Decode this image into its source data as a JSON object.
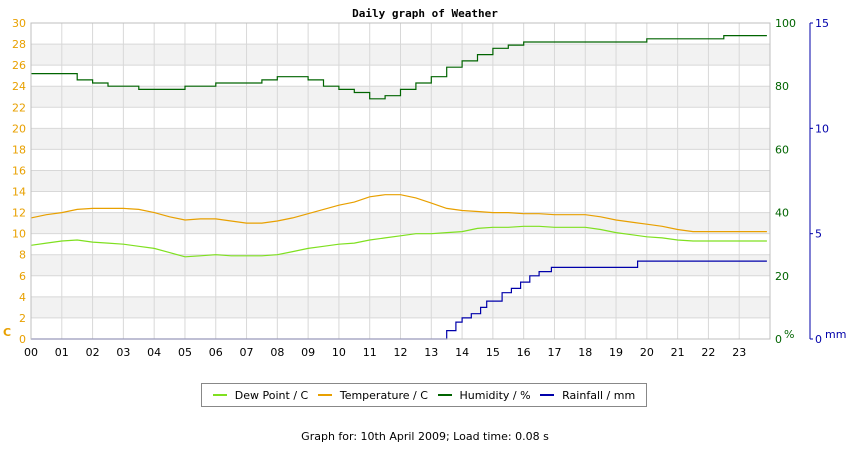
{
  "chart_data": {
    "type": "line",
    "title": "Daily graph of Weather",
    "x_ticks": [
      "00",
      "01",
      "02",
      "03",
      "04",
      "05",
      "06",
      "07",
      "08",
      "09",
      "10",
      "11",
      "12",
      "13",
      "14",
      "15",
      "16",
      "17",
      "18",
      "19",
      "20",
      "21",
      "22",
      "23"
    ],
    "xlim": [
      0,
      24
    ],
    "grid": true,
    "legend_position": "bottom",
    "axes": {
      "left": {
        "label": "C",
        "lim": [
          0,
          30
        ],
        "ticks": [
          0,
          2,
          4,
          6,
          8,
          10,
          12,
          14,
          16,
          18,
          20,
          22,
          24,
          26,
          28,
          30
        ],
        "color": "#e8a000"
      },
      "right_inner": {
        "label": "%",
        "lim": [
          0,
          100
        ],
        "ticks": [
          0,
          20,
          40,
          60,
          80,
          100
        ],
        "color": "#006400"
      },
      "right_outer": {
        "label": "mm",
        "lim": [
          0,
          15
        ],
        "ticks": [
          0,
          5,
          10,
          15
        ],
        "color": "#0000aa"
      }
    },
    "series": [
      {
        "name": "Dew Point / C",
        "color": "#7fe020",
        "axis": "left",
        "x": [
          0,
          0.5,
          1,
          1.5,
          2,
          2.5,
          3,
          3.5,
          4,
          4.5,
          5,
          5.5,
          6,
          6.5,
          7,
          7.5,
          8,
          8.5,
          9,
          9.5,
          10,
          10.5,
          11,
          11.5,
          12,
          12.5,
          13,
          13.5,
          14,
          14.5,
          15,
          15.5,
          16,
          16.5,
          17,
          17.5,
          18,
          18.5,
          19,
          19.5,
          20,
          20.5,
          21,
          21.5,
          22,
          22.5,
          23,
          23.9
        ],
        "y": [
          8.9,
          9.1,
          9.3,
          9.4,
          9.2,
          9.1,
          9.0,
          8.8,
          8.6,
          8.2,
          7.8,
          7.9,
          8.0,
          7.9,
          7.9,
          7.9,
          8.0,
          8.3,
          8.6,
          8.8,
          9.0,
          9.1,
          9.4,
          9.6,
          9.8,
          10.0,
          10.0,
          10.1,
          10.2,
          10.5,
          10.6,
          10.6,
          10.7,
          10.7,
          10.6,
          10.6,
          10.6,
          10.4,
          10.1,
          9.9,
          9.7,
          9.6,
          9.4,
          9.3,
          9.3,
          9.3,
          9.3,
          9.3
        ]
      },
      {
        "name": "Temperature / C",
        "color": "#e8a000",
        "axis": "left",
        "x": [
          0,
          0.5,
          1,
          1.5,
          2,
          2.5,
          3,
          3.5,
          4,
          4.5,
          5,
          5.5,
          6,
          6.5,
          7,
          7.5,
          8,
          8.5,
          9,
          9.5,
          10,
          10.5,
          11,
          11.5,
          12,
          12.5,
          13,
          13.5,
          14,
          14.5,
          15,
          15.5,
          16,
          16.5,
          17,
          17.5,
          18,
          18.5,
          19,
          19.5,
          20,
          20.5,
          21,
          21.5,
          22,
          22.5,
          23,
          23.9
        ],
        "y": [
          11.5,
          11.8,
          12.0,
          12.3,
          12.4,
          12.4,
          12.4,
          12.3,
          12.0,
          11.6,
          11.3,
          11.4,
          11.4,
          11.2,
          11.0,
          11.0,
          11.2,
          11.5,
          11.9,
          12.3,
          12.7,
          13.0,
          13.5,
          13.7,
          13.7,
          13.4,
          12.9,
          12.4,
          12.2,
          12.1,
          12.0,
          12.0,
          11.9,
          11.9,
          11.8,
          11.8,
          11.8,
          11.6,
          11.3,
          11.1,
          10.9,
          10.7,
          10.4,
          10.2,
          10.2,
          10.2,
          10.2,
          10.2
        ]
      },
      {
        "name": "Humidity / %",
        "color": "#006400",
        "axis": "right_inner",
        "x": [
          0,
          1,
          1.5,
          2,
          2.5,
          3,
          3.5,
          4,
          4.5,
          5,
          6,
          7,
          7.5,
          8,
          8.5,
          9,
          9.5,
          10,
          10.5,
          11,
          11.5,
          12,
          12.5,
          13,
          13.5,
          14,
          14.5,
          15,
          15.5,
          16,
          17,
          18,
          19,
          19.5,
          20,
          21,
          22,
          22.5,
          23,
          23.9
        ],
        "y": [
          84,
          84,
          82,
          81,
          80,
          80,
          79,
          79,
          79,
          80,
          81,
          81,
          82,
          83,
          83,
          82,
          80,
          79,
          78,
          76,
          77,
          79,
          81,
          83,
          86,
          88,
          90,
          92,
          93,
          94,
          94,
          94,
          94,
          94,
          95,
          95,
          95,
          96,
          96,
          96
        ]
      },
      {
        "name": "Rainfall / mm",
        "color": "#0000aa",
        "axis": "right_outer",
        "x": [
          0,
          13.3,
          13.5,
          13.8,
          14,
          14.3,
          14.6,
          14.8,
          15.3,
          15.6,
          15.9,
          16.2,
          16.5,
          16.9,
          18,
          19.6,
          19.7,
          23.9
        ],
        "y": [
          0,
          0,
          0.4,
          0.8,
          1.0,
          1.2,
          1.5,
          1.8,
          2.2,
          2.4,
          2.7,
          3.0,
          3.2,
          3.4,
          3.4,
          3.4,
          3.7,
          3.7
        ]
      }
    ]
  },
  "footer": "Graph for: 10th April 2009; Load time: 0.08 s"
}
